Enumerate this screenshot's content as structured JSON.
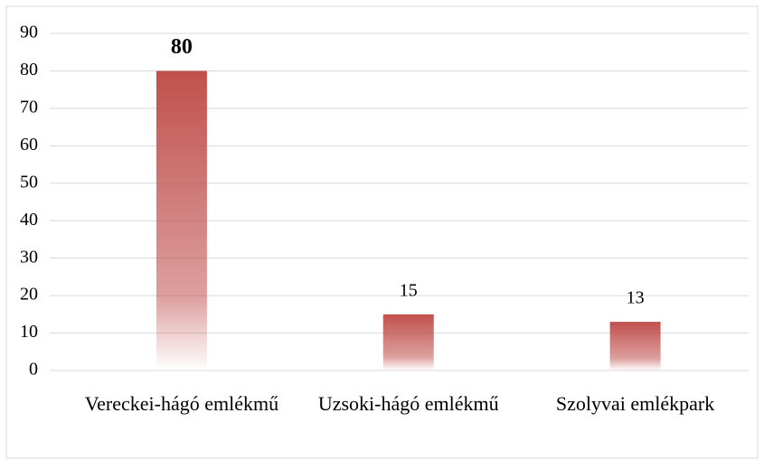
{
  "chart_data": {
    "type": "bar",
    "categories": [
      "Vereckei-hágó emlékmű",
      "Uzsoki-hágó emlékmű",
      "Szolyvai emlékpark"
    ],
    "values": [
      80,
      15,
      13
    ],
    "color": "#c0504d",
    "ylim": [
      0,
      90
    ],
    "yticks": [
      0,
      10,
      20,
      30,
      40,
      50,
      60,
      70,
      80,
      90
    ],
    "grid": true
  }
}
